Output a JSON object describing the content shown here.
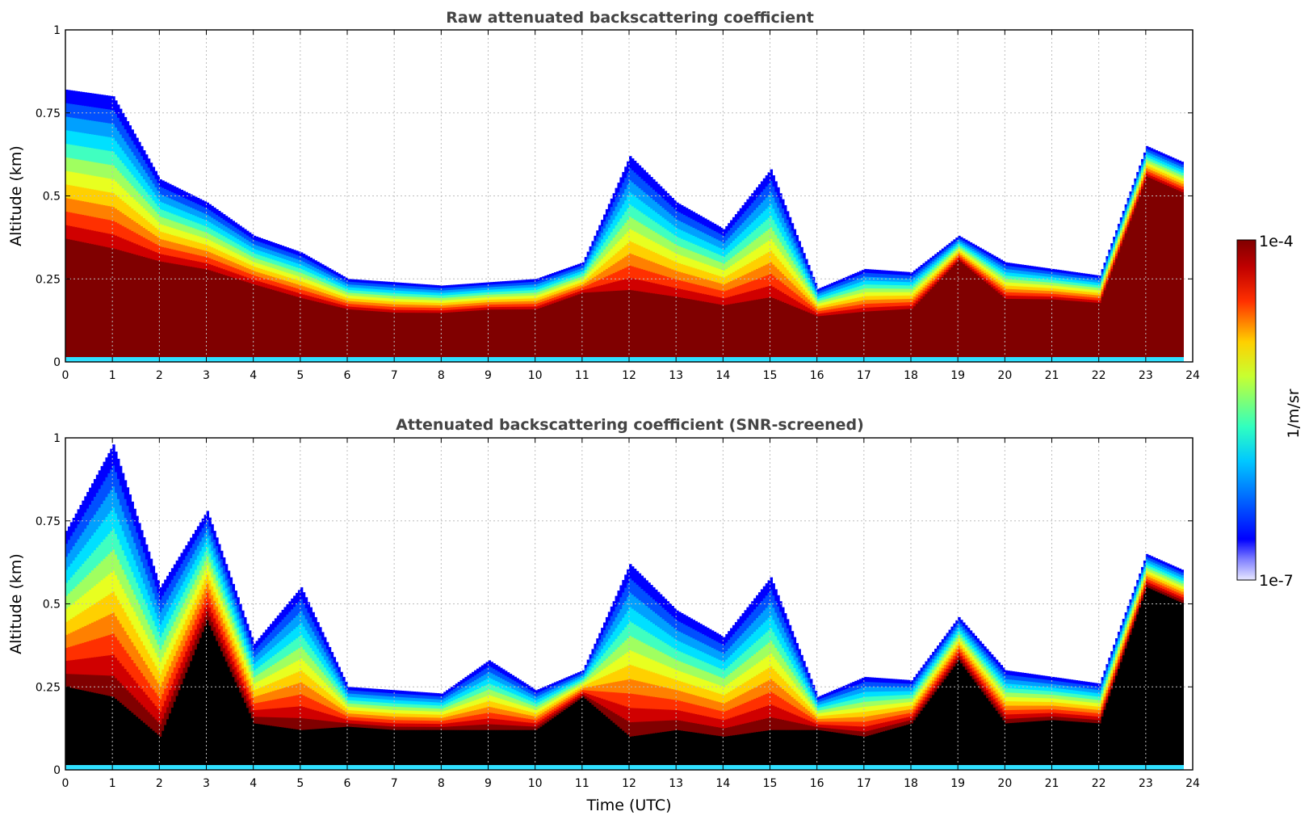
{
  "xlabel": "Time (UTC)",
  "colorbar": {
    "label": "1/m/sr",
    "max_label": "1e-4",
    "min_label": "1e-7",
    "vmin": 1e-07,
    "vmax": 0.0001,
    "scale": "log",
    "colormap": "jet"
  },
  "chart_data": [
    {
      "type": "heatmap",
      "title": "Raw attenuated backscattering coefficient",
      "ylabel": "Altitude (km)",
      "x_ticks": [
        "0",
        "1",
        "2",
        "3",
        "4",
        "5",
        "6",
        "7",
        "8",
        "9",
        "10",
        "11",
        "12",
        "13",
        "14",
        "15",
        "16",
        "17",
        "18",
        "19",
        "20",
        "21",
        "22",
        "23",
        "24"
      ],
      "y_ticks": [
        "0",
        "0.25",
        "0.5",
        "0.75",
        "1"
      ],
      "xlim": [
        0,
        24
      ],
      "ylim": [
        0,
        1
      ],
      "grid": true,
      "x_hours": [
        0,
        1,
        2,
        3,
        4,
        5,
        6,
        7,
        8,
        9,
        10,
        11,
        12,
        13,
        14,
        15,
        16,
        17,
        18,
        19,
        20,
        21,
        22,
        23,
        23.8
      ],
      "layer_top_km": [
        0.82,
        0.8,
        0.55,
        0.48,
        0.38,
        0.33,
        0.25,
        0.24,
        0.23,
        0.24,
        0.25,
        0.3,
        0.62,
        0.48,
        0.4,
        0.58,
        0.22,
        0.28,
        0.27,
        0.38,
        0.3,
        0.28,
        0.26,
        0.65,
        0.6
      ],
      "core_top_km": [
        0.33,
        0.3,
        0.28,
        0.26,
        0.22,
        0.18,
        0.15,
        0.14,
        0.14,
        0.15,
        0.15,
        0.2,
        0.18,
        0.17,
        0.15,
        0.16,
        0.13,
        0.14,
        0.15,
        0.3,
        0.18,
        0.18,
        0.17,
        0.55,
        0.5
      ]
    },
    {
      "type": "heatmap",
      "title": "Attenuated backscattering coefficient (SNR-screened)",
      "ylabel": "Altitude (km)",
      "x_ticks": [
        "0",
        "1",
        "2",
        "3",
        "4",
        "5",
        "6",
        "7",
        "8",
        "9",
        "10",
        "11",
        "12",
        "13",
        "14",
        "15",
        "16",
        "17",
        "18",
        "19",
        "20",
        "21",
        "22",
        "23",
        "24"
      ],
      "y_ticks": [
        "0",
        "0.25",
        "0.5",
        "0.75",
        "1"
      ],
      "xlim": [
        0,
        24
      ],
      "ylim": [
        0,
        1
      ],
      "grid": true,
      "x_hours": [
        0,
        1,
        2,
        3,
        4,
        5,
        6,
        7,
        8,
        9,
        10,
        11,
        12,
        13,
        14,
        15,
        16,
        17,
        18,
        19,
        20,
        21,
        22,
        23,
        23.8
      ],
      "layer_top_km": [
        0.72,
        0.98,
        0.55,
        0.78,
        0.38,
        0.55,
        0.25,
        0.24,
        0.23,
        0.33,
        0.24,
        0.3,
        0.62,
        0.48,
        0.4,
        0.58,
        0.22,
        0.28,
        0.27,
        0.46,
        0.3,
        0.28,
        0.26,
        0.65,
        0.6
      ],
      "screened_top_km": [
        0.25,
        0.22,
        0.1,
        0.45,
        0.14,
        0.12,
        0.13,
        0.12,
        0.12,
        0.12,
        0.12,
        0.22,
        0.1,
        0.12,
        0.1,
        0.12,
        0.12,
        0.1,
        0.14,
        0.33,
        0.14,
        0.15,
        0.14,
        0.55,
        0.5
      ]
    }
  ]
}
